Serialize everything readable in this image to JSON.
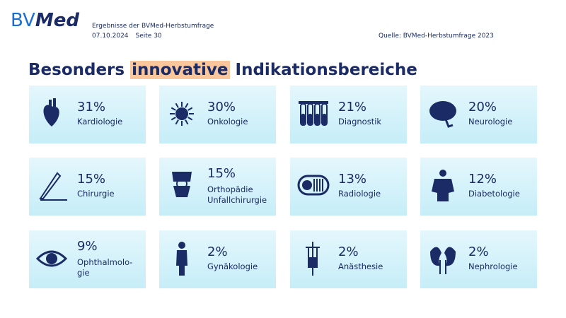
{
  "logo": {
    "part1": "BV",
    "part2": "Med"
  },
  "header": {
    "subtitle": "Ergebnisse der BVMed-Herbstumfrage",
    "date": "07.10.2024",
    "page": "Seite 30",
    "source": "Quelle: BVMed-Herbstumfrage 2023"
  },
  "title": {
    "before": "Besonders ",
    "highlight": "innovative",
    "after": " Indikationsbereiche"
  },
  "tiles": [
    {
      "percent": "31%",
      "label": [
        "Kardiologie"
      ]
    },
    {
      "percent": "30%",
      "label": [
        "Onkologie"
      ]
    },
    {
      "percent": "21%",
      "label": [
        "Diagnostik"
      ]
    },
    {
      "percent": "20%",
      "label": [
        "Neurologie"
      ]
    },
    {
      "percent": "15%",
      "label": [
        "Chirurgie"
      ]
    },
    {
      "percent": "15%",
      "label": [
        "Orthopädie",
        "Unfallchirurgie"
      ]
    },
    {
      "percent": "13%",
      "label": [
        "Radiologie"
      ]
    },
    {
      "percent": "12%",
      "label": [
        "Diabetologie"
      ]
    },
    {
      "percent": "9%",
      "label": [
        "Ophthalmolo-",
        "gie"
      ]
    },
    {
      "percent": "2%",
      "label": [
        "Gynäkologie"
      ]
    },
    {
      "percent": "2%",
      "label": [
        "Anästhesie"
      ]
    },
    {
      "percent": "2%",
      "label": [
        "Nephrologie"
      ]
    }
  ]
}
